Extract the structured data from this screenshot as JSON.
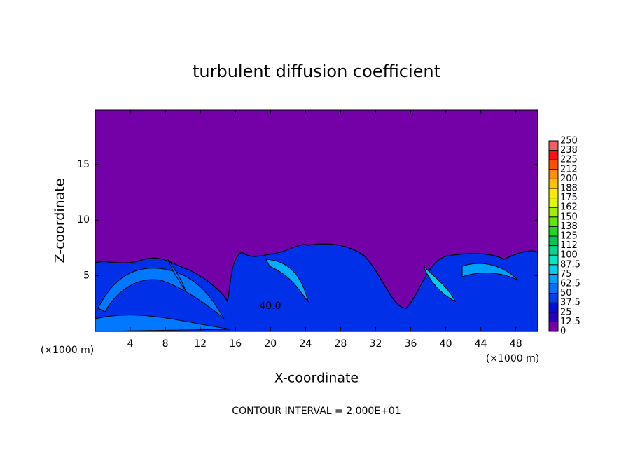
{
  "chart_data": {
    "type": "contour",
    "title": "turbulent diffusion coefficient",
    "x_label": "X-coordinate",
    "y_label": "Z-coordinate",
    "x_unit": "(×1000 m)",
    "y_unit": "(×1000 m)",
    "footer": "CONTOUR INTERVAL = 2.000E+01",
    "annotations": [
      "40.0"
    ],
    "xlim": [
      0,
      50.5
    ],
    "xticks": [
      4,
      8,
      12,
      16,
      20,
      24,
      28,
      32,
      36,
      40,
      44,
      48
    ],
    "ylim": [
      0,
      19.9
    ],
    "yticks": [
      5,
      10,
      15
    ],
    "colorbar": {
      "levels": [
        0,
        12.5,
        25,
        37.5,
        50,
        62.5,
        75,
        87.5,
        100,
        {
          "value": 112.5,
          "label": "112"
        },
        125,
        {
          "value": 137.5,
          "label": "138"
        },
        150,
        {
          "value": 162.5,
          "label": "162"
        },
        175,
        {
          "value": 187.5,
          "label": "188"
        },
        200,
        {
          "value": 212.5,
          "label": "212"
        },
        225,
        {
          "value": 237.5,
          "label": "238"
        },
        250
      ],
      "colors": [
        "#7400a8",
        "#2800c0",
        "#0010d8",
        "#0040f0",
        "#0070ff",
        "#00a0ff",
        "#00d0f0",
        "#00e8c0",
        "#00d890",
        "#00c850",
        "#20d820",
        "#60e800",
        "#a0f000",
        "#e0f800",
        "#ffe800",
        "#ffc000",
        "#ff9000",
        "#ff5000",
        "#ff1010",
        "#f06060"
      ]
    }
  }
}
